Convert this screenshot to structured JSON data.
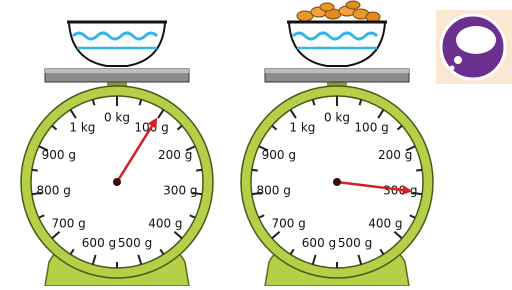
{
  "dial_labels": [
    "0 kg",
    "100 g",
    "200 g",
    "300 g",
    "400 g",
    "500 g",
    "600 g",
    "700 g",
    "800 g",
    "900 g",
    "1 kg"
  ]
}
